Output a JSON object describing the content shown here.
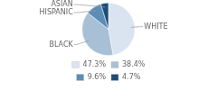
{
  "chart_data": {
    "type": "pie",
    "categories": [
      "WHITE",
      "BLACK",
      "HISPANIC",
      "ASIAN"
    ],
    "values": [
      47.3,
      38.4,
      9.6,
      4.7
    ],
    "value_labels": [
      "47.3%",
      "38.4%",
      "9.6%",
      "4.7%"
    ],
    "colors": [
      "#d9e4f0",
      "#a8c0d6",
      "#5b8db8",
      "#1e4d78"
    ],
    "legend": "bottom"
  }
}
